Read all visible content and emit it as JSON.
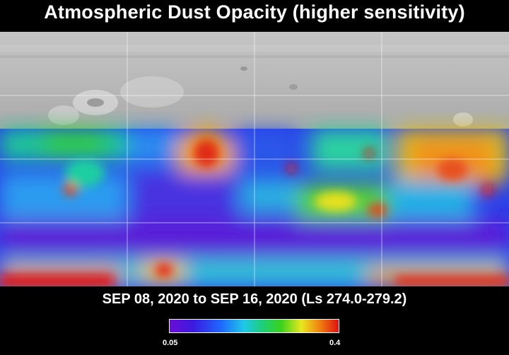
{
  "title": "Atmospheric Dust Opacity (higher sensitivity)",
  "date_range": "SEP 08, 2020 to SEP 16, 2020 (Ls 274.0-279.2)",
  "legend": {
    "min_label": "0.05",
    "max_label": "0.4"
  },
  "colors": {
    "background": "#000000",
    "low": "#6a0dd6",
    "high": "#e01010"
  }
}
